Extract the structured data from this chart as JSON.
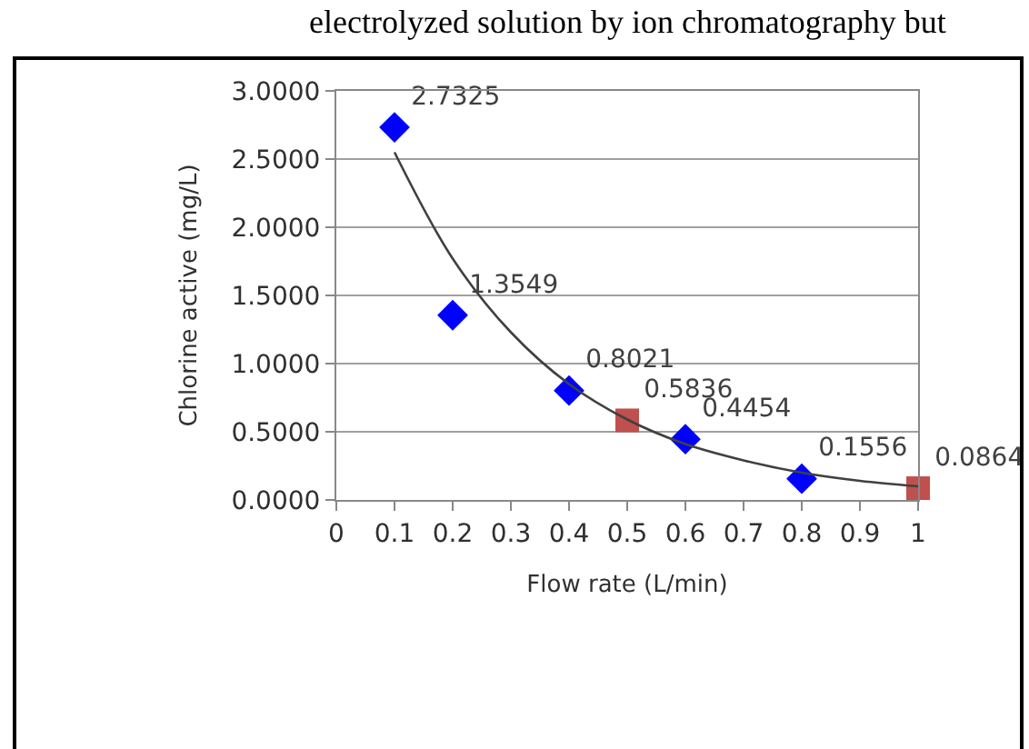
{
  "chart_data": {
    "type": "scatter",
    "xlabel": "Flow rate (L/min)",
    "ylabel": "Chlorine active (mg/L)",
    "annotations": [
      "electrolyzed solution by ion chromatography but"
    ],
    "xlim": [
      0,
      1
    ],
    "xticks": [
      0,
      0.1,
      0.2,
      0.3,
      0.4,
      0.5,
      0.6,
      0.7,
      0.8,
      0.9,
      1
    ],
    "ylim": [
      0,
      3
    ],
    "yticks": [
      {
        "value": 0,
        "label": "0.0000"
      },
      {
        "value": 0.5,
        "label": "0.5000"
      },
      {
        "value": 1,
        "label": "1.0000"
      },
      {
        "value": 1.5,
        "label": "1.5000"
      },
      {
        "value": 2,
        "label": "2.0000"
      },
      {
        "value": 2.5,
        "label": "2.5000"
      },
      {
        "value": 3,
        "label": "3.0000"
      }
    ],
    "grid": "y",
    "series": [
      {
        "marker": "diamond",
        "color": "#0000ff",
        "x": [
          0.1,
          0.2,
          0.4,
          0.6,
          0.8
        ],
        "values": [
          2.7325,
          1.3549,
          0.8021,
          0.4454,
          0.1556
        ],
        "value_labels": [
          "2.7325",
          "1.3549",
          "0.8021",
          "0.4454",
          "0.1556"
        ]
      },
      {
        "marker": "square",
        "color": "#c0504d",
        "x": [
          0.5,
          1.0
        ],
        "values": [
          0.5836,
          0.0864
        ],
        "value_labels": [
          "0.5836",
          "0.0864"
        ]
      },
      {
        "type": "line",
        "color": "#404040",
        "x": [
          0.1,
          0.2,
          0.3,
          0.4,
          0.5,
          0.6,
          0.7,
          0.8,
          0.9,
          1.0
        ],
        "values": [
          2.55,
          1.77,
          1.23,
          0.85,
          0.59,
          0.41,
          0.29,
          0.2,
          0.14,
          0.1
        ]
      }
    ]
  }
}
